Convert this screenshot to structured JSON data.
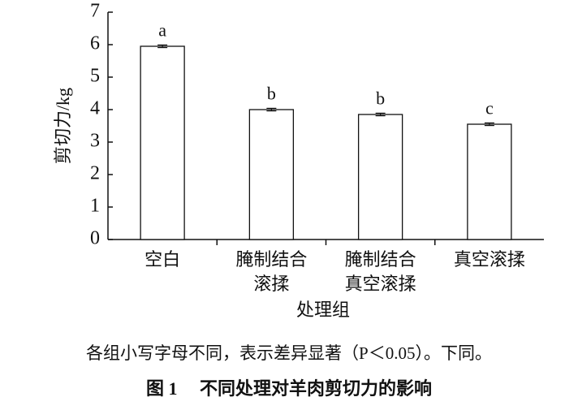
{
  "chart_data": {
    "type": "bar",
    "categories": [
      [
        "空白"
      ],
      [
        "腌制结合",
        "滚揉"
      ],
      [
        "腌制结合",
        "真空滚揉"
      ],
      [
        "真空滚揉"
      ]
    ],
    "values": [
      5.95,
      4.0,
      3.85,
      3.55
    ],
    "errors": [
      0.04,
      0.04,
      0.04,
      0.04
    ],
    "significance": [
      "a",
      "b",
      "b",
      "c"
    ],
    "color": "#ffffff",
    "ylim": [
      0,
      7
    ],
    "yticks": [
      0,
      1,
      2,
      3,
      4,
      5,
      6,
      7
    ],
    "ylabel": "剪切力/kg",
    "xlabel": "处理组",
    "note": "各组小写字母不同，表示差异显著（P＜0.05）。下同。",
    "caption": "图 1　 不同处理对羊肉剪切力的影响"
  }
}
